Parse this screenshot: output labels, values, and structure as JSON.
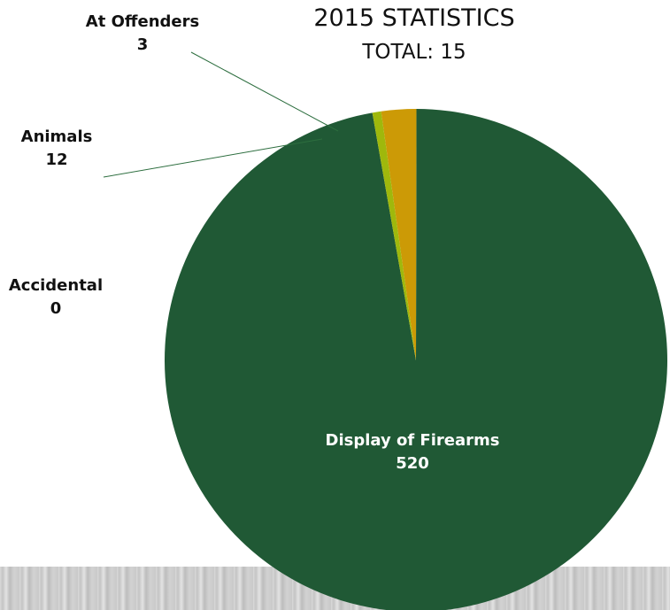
{
  "chart_data": {
    "type": "pie",
    "title": "2015 STATISTICS",
    "subtitle": "TOTAL: 15",
    "slices": [
      {
        "label": "Display of Firearms",
        "value": 520,
        "color": "#205935"
      },
      {
        "label": "Accidental",
        "value": 0,
        "color": "#7a9a2e"
      },
      {
        "label": "Animals",
        "value": 12,
        "color": "#cc9a06"
      },
      {
        "label": "At Offenders",
        "value": 3,
        "color": "#9fb80c"
      }
    ]
  }
}
